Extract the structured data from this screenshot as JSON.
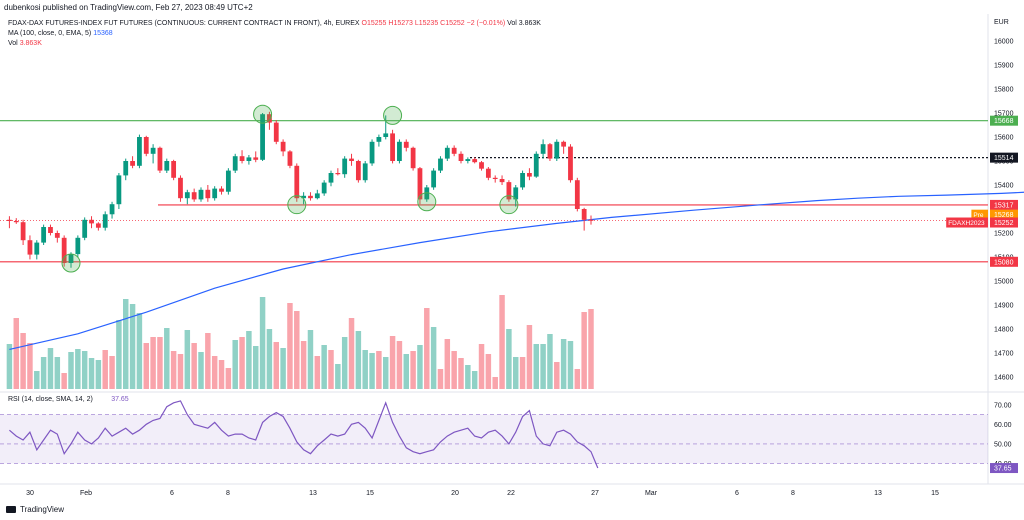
{
  "header": {
    "publisher": "dubenkosi published on TradingView.com, Feb 27, 2023 08:49 UTC+2"
  },
  "legend": {
    "line1_title": "FDAX-DAX FUTURES-INDEX FUT FUTURES (CONTINUOUS: CURRENT CONTRACT IN FRONT), 4h, EUREX",
    "ohlc": "O15255  H15273  L15235  C15252  −2 (−0.01%)",
    "vol_inline": "Vol 3.863K",
    "ma_label": "MA (100, close, 0, EMA, 5)",
    "ma_value": "15368",
    "vol_label": "Vol",
    "vol_value": "3.863K",
    "rsi_label": "RSI (14, close, SMA, 14, 2)",
    "rsi_value": "37.65"
  },
  "currency": "EUR",
  "footer": {
    "brand": "TradingView"
  },
  "chart_data": {
    "type": "candlestick",
    "price_axis": {
      "range": [
        14550,
        16100
      ],
      "ticks": [
        14600,
        14700,
        14800,
        14900,
        15000,
        15100,
        15200,
        15300,
        15400,
        15500,
        15600,
        15700,
        15800,
        15900,
        16000
      ]
    },
    "time_axis": {
      "ticks": [
        "30",
        "Feb",
        "6",
        "8",
        "13",
        "15",
        "20",
        "22",
        "27",
        "Mar",
        "6",
        "8",
        "13",
        "15"
      ]
    },
    "horizontal_levels": [
      {
        "value": 15668,
        "label": "15668",
        "color": "#4caf50",
        "style": "solid"
      },
      {
        "value": 15514,
        "label": "15514",
        "color": "#131722",
        "style": "dotted"
      },
      {
        "value": 15317,
        "label": "15317",
        "color": "#f23645",
        "style": "solid"
      },
      {
        "value": 15080,
        "label": "15080",
        "color": "#f23645",
        "style": "solid"
      }
    ],
    "price_tags": [
      {
        "value": 15268,
        "label": "15268",
        "tag": "Pre",
        "color": "#ff9800"
      },
      {
        "value": 15252,
        "label": "15252",
        "tag": "FDAXH2023",
        "color": "#f23645"
      }
    ],
    "candles": [
      [
        15255,
        15270,
        15220,
        15250
      ],
      [
        15250,
        15262,
        15238,
        15245
      ],
      [
        15245,
        15255,
        15150,
        15170
      ],
      [
        15170,
        15190,
        15090,
        15110
      ],
      [
        15110,
        15170,
        15090,
        15160
      ],
      [
        15160,
        15235,
        15150,
        15225
      ],
      [
        15225,
        15235,
        15190,
        15200
      ],
      [
        15200,
        15210,
        15160,
        15180
      ],
      [
        15180,
        15190,
        15060,
        15075
      ],
      [
        15075,
        15120,
        15055,
        15112
      ],
      [
        15112,
        15190,
        15100,
        15180
      ],
      [
        15180,
        15265,
        15170,
        15255
      ],
      [
        15255,
        15270,
        15220,
        15240
      ],
      [
        15240,
        15245,
        15210,
        15222
      ],
      [
        15222,
        15290,
        15210,
        15278
      ],
      [
        15278,
        15330,
        15260,
        15320
      ],
      [
        15320,
        15450,
        15300,
        15440
      ],
      [
        15440,
        15510,
        15420,
        15500
      ],
      [
        15500,
        15520,
        15470,
        15480
      ],
      [
        15480,
        15610,
        15470,
        15600
      ],
      [
        15600,
        15605,
        15520,
        15530
      ],
      [
        15530,
        15570,
        15490,
        15555
      ],
      [
        15555,
        15560,
        15450,
        15460
      ],
      [
        15460,
        15510,
        15450,
        15500
      ],
      [
        15500,
        15505,
        15420,
        15430
      ],
      [
        15430,
        15440,
        15330,
        15345
      ],
      [
        15345,
        15380,
        15320,
        15370
      ],
      [
        15370,
        15385,
        15330,
        15340
      ],
      [
        15340,
        15390,
        15330,
        15380
      ],
      [
        15380,
        15400,
        15330,
        15345
      ],
      [
        15345,
        15395,
        15335,
        15385
      ],
      [
        15385,
        15395,
        15360,
        15372
      ],
      [
        15372,
        15470,
        15360,
        15460
      ],
      [
        15460,
        15530,
        15450,
        15520
      ],
      [
        15520,
        15545,
        15490,
        15500
      ],
      [
        15500,
        15525,
        15485,
        15515
      ],
      [
        15515,
        15540,
        15495,
        15505
      ],
      [
        15505,
        15700,
        15500,
        15695
      ],
      [
        15695,
        15705,
        15630,
        15660
      ],
      [
        15660,
        15670,
        15570,
        15580
      ],
      [
        15580,
        15590,
        15520,
        15540
      ],
      [
        15540,
        15545,
        15470,
        15480
      ],
      [
        15480,
        15490,
        15330,
        15345
      ],
      [
        15345,
        15370,
        15320,
        15355
      ],
      [
        15355,
        15370,
        15335,
        15345
      ],
      [
        15345,
        15380,
        15340,
        15365
      ],
      [
        15365,
        15420,
        15355,
        15410
      ],
      [
        15410,
        15460,
        15395,
        15450
      ],
      [
        15450,
        15470,
        15440,
        15445
      ],
      [
        15445,
        15520,
        15430,
        15510
      ],
      [
        15510,
        15530,
        15480,
        15500
      ],
      [
        15500,
        15505,
        15410,
        15420
      ],
      [
        15420,
        15500,
        15410,
        15490
      ],
      [
        15490,
        15590,
        15480,
        15580
      ],
      [
        15580,
        15610,
        15560,
        15600
      ],
      [
        15600,
        15690,
        15590,
        15615
      ],
      [
        15615,
        15630,
        15490,
        15500
      ],
      [
        15500,
        15590,
        15490,
        15580
      ],
      [
        15580,
        15590,
        15540,
        15555
      ],
      [
        15555,
        15560,
        15460,
        15470
      ],
      [
        15470,
        15475,
        15320,
        15340
      ],
      [
        15340,
        15400,
        15330,
        15390
      ],
      [
        15390,
        15470,
        15380,
        15460
      ],
      [
        15460,
        15520,
        15450,
        15510
      ],
      [
        15510,
        15565,
        15500,
        15555
      ],
      [
        15555,
        15565,
        15520,
        15530
      ],
      [
        15530,
        15540,
        15490,
        15500
      ],
      [
        15500,
        15515,
        15490,
        15508
      ],
      [
        15508,
        15515,
        15490,
        15495
      ],
      [
        15495,
        15500,
        15460,
        15468
      ],
      [
        15468,
        15475,
        15420,
        15430
      ],
      [
        15430,
        15440,
        15410,
        15425
      ],
      [
        15425,
        15440,
        15400,
        15412
      ],
      [
        15412,
        15420,
        15330,
        15340
      ],
      [
        15340,
        15400,
        15310,
        15390
      ],
      [
        15390,
        15460,
        15380,
        15450
      ],
      [
        15450,
        15470,
        15420,
        15435
      ],
      [
        15435,
        15540,
        15430,
        15530
      ],
      [
        15530,
        15590,
        15510,
        15570
      ],
      [
        15570,
        15575,
        15500,
        15510
      ],
      [
        15510,
        15590,
        15500,
        15580
      ],
      [
        15580,
        15585,
        15530,
        15560
      ],
      [
        15560,
        15570,
        15410,
        15420
      ],
      [
        15420,
        15430,
        15290,
        15300
      ],
      [
        15300,
        15305,
        15210,
        15255
      ],
      [
        15255,
        15273,
        15235,
        15252
      ]
    ],
    "ema100": [
      [
        0,
        14715
      ],
      [
        10,
        14780
      ],
      [
        20,
        14870
      ],
      [
        30,
        14970
      ],
      [
        40,
        15050
      ],
      [
        50,
        15110
      ],
      [
        60,
        15160
      ],
      [
        70,
        15205
      ],
      [
        80,
        15240
      ],
      [
        88,
        15265
      ],
      [
        100,
        15295
      ],
      [
        110,
        15318
      ],
      [
        118,
        15335
      ],
      [
        124,
        15345
      ],
      [
        130,
        15353
      ],
      [
        137,
        15358
      ],
      [
        145,
        15365
      ],
      [
        150,
        15372
      ],
      [
        156,
        15380
      ],
      [
        160,
        15382
      ]
    ],
    "ema100_note": "pairs of [candle index, price]",
    "volume": [
      [
        0,
        0.45
      ],
      [
        1,
        0.71
      ],
      [
        1,
        0.56
      ],
      [
        1,
        0.46
      ],
      [
        0,
        0.18
      ],
      [
        0,
        0.32
      ],
      [
        0,
        0.41
      ],
      [
        0,
        0.32
      ],
      [
        1,
        0.16
      ],
      [
        0,
        0.37
      ],
      [
        0,
        0.4
      ],
      [
        0,
        0.38
      ],
      [
        0,
        0.31
      ],
      [
        0,
        0.29
      ],
      [
        1,
        0.39
      ],
      [
        1,
        0.33
      ],
      [
        0,
        0.69
      ],
      [
        0,
        0.9
      ],
      [
        0,
        0.85
      ],
      [
        0,
        0.76
      ],
      [
        1,
        0.46
      ],
      [
        1,
        0.52
      ],
      [
        1,
        0.52
      ],
      [
        0,
        0.61
      ],
      [
        1,
        0.38
      ],
      [
        1,
        0.35
      ],
      [
        0,
        0.59
      ],
      [
        1,
        0.46
      ],
      [
        0,
        0.37
      ],
      [
        1,
        0.56
      ],
      [
        1,
        0.33
      ],
      [
        1,
        0.29
      ],
      [
        1,
        0.21
      ],
      [
        0,
        0.49
      ],
      [
        1,
        0.52
      ],
      [
        0,
        0.58
      ],
      [
        0,
        0.43
      ],
      [
        0,
        0.92
      ],
      [
        0,
        0.6
      ],
      [
        1,
        0.47
      ],
      [
        0,
        0.41
      ],
      [
        1,
        0.86
      ],
      [
        1,
        0.78
      ],
      [
        1,
        0.48
      ],
      [
        0,
        0.59
      ],
      [
        1,
        0.33
      ],
      [
        0,
        0.44
      ],
      [
        1,
        0.39
      ],
      [
        0,
        0.25
      ],
      [
        0,
        0.52
      ],
      [
        1,
        0.71
      ],
      [
        0,
        0.58
      ],
      [
        0,
        0.39
      ],
      [
        0,
        0.36
      ],
      [
        1,
        0.38
      ],
      [
        0,
        0.32
      ],
      [
        1,
        0.53
      ],
      [
        1,
        0.48
      ],
      [
        0,
        0.35
      ],
      [
        1,
        0.38
      ],
      [
        0,
        0.44
      ],
      [
        1,
        0.81
      ],
      [
        0,
        0.62
      ],
      [
        1,
        0.2
      ],
      [
        1,
        0.5
      ],
      [
        1,
        0.38
      ],
      [
        1,
        0.31
      ],
      [
        0,
        0.24
      ],
      [
        0,
        0.18
      ],
      [
        1,
        0.45
      ],
      [
        1,
        0.35
      ],
      [
        1,
        0.12
      ],
      [
        1,
        0.94
      ],
      [
        0,
        0.6
      ],
      [
        0,
        0.32
      ],
      [
        1,
        0.32
      ],
      [
        1,
        0.64
      ],
      [
        0,
        0.45
      ],
      [
        0,
        0.45
      ],
      [
        0,
        0.55
      ],
      [
        1,
        0.27
      ],
      [
        0,
        0.5
      ],
      [
        0,
        0.48
      ],
      [
        1,
        0.2
      ],
      [
        1,
        0.77
      ],
      [
        1,
        0.8
      ],
      [
        1,
        0.09
      ]
    ],
    "volume_note": "pairs of [is_down (1) / is_up (0), relative height 0-1]",
    "rsi": {
      "range": [
        30,
        75
      ],
      "ticks": [
        40.0,
        50.0,
        60.0,
        70.0
      ],
      "band": [
        40,
        65
      ],
      "values": [
        57,
        54,
        52,
        56,
        47,
        52,
        57,
        55,
        45,
        50,
        56,
        52,
        50,
        53,
        58,
        54,
        56,
        58,
        55,
        57,
        60,
        62,
        63,
        69,
        71,
        72,
        65,
        60,
        59,
        58,
        61,
        57,
        54,
        55,
        55,
        53,
        52,
        61,
        64,
        66,
        64,
        58,
        51,
        47,
        45,
        49,
        52,
        55,
        54,
        55,
        60,
        61,
        58,
        53,
        62,
        71,
        61,
        54,
        48,
        46,
        45,
        46,
        47,
        51,
        54,
        56,
        57,
        58,
        54,
        53,
        56,
        57,
        54,
        50,
        56,
        64,
        67,
        54,
        50,
        49,
        56,
        57,
        55,
        51,
        49,
        46,
        37.65
      ]
    },
    "markers": [
      {
        "index": 9,
        "price": 15075
      },
      {
        "index": 37,
        "price": 15695
      },
      {
        "index": 42,
        "price": 15318
      },
      {
        "index": 56,
        "price": 15690
      },
      {
        "index": 61,
        "price": 15330
      },
      {
        "index": 73,
        "price": 15318
      }
    ]
  }
}
